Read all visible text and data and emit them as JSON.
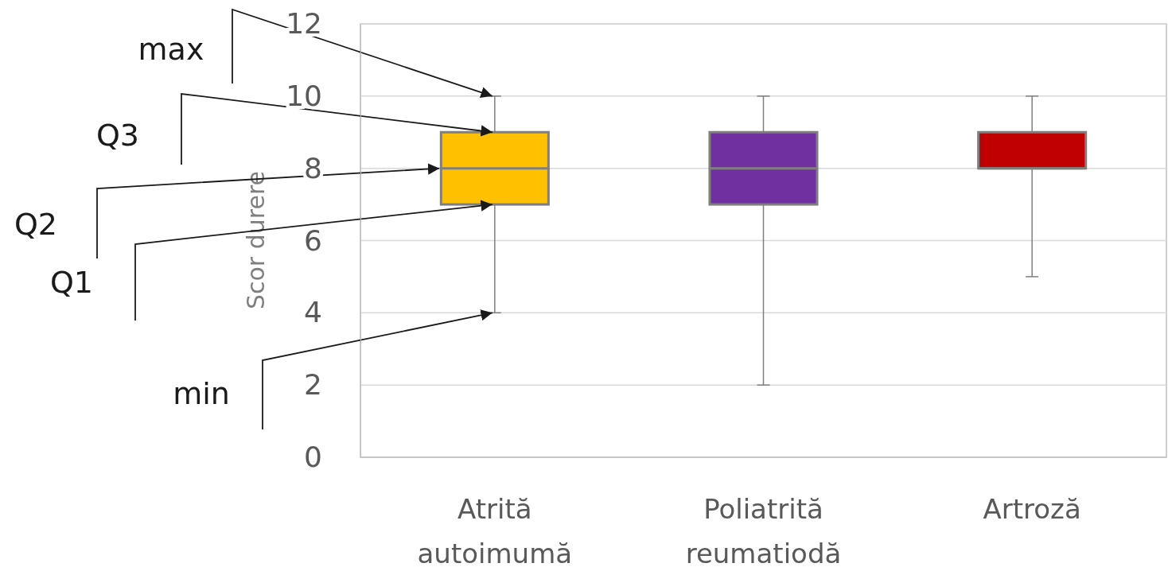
{
  "chart_data": {
    "type": "box",
    "ylabel": "Scor durere",
    "categories": [
      "Atrită autoimumă",
      "Poliatrită reumatiodă",
      "Artroză"
    ],
    "colors": [
      "#ffc000",
      "#7030a0",
      "#c00000"
    ],
    "boxes": [
      {
        "low": 4,
        "q1": 7,
        "median": 8,
        "q3": 9,
        "high": 10
      },
      {
        "low": 2,
        "q1": 7,
        "median": 8,
        "q3": 9,
        "high": 10
      },
      {
        "low": 5,
        "q1": 8,
        "median": 8,
        "q3": 9,
        "high": 10
      }
    ],
    "ylim": [
      0,
      12
    ],
    "yticks": [
      0,
      2,
      4,
      6,
      8,
      10,
      12
    ],
    "grid": "y",
    "annotations": [
      {
        "text": "max",
        "x": "Atrită autoimumă",
        "y": 10
      },
      "Q3",
      "Q2",
      "Q1",
      {
        "text": "min",
        "x": "Atrită autoimumă",
        "y": 4
      }
    ]
  }
}
